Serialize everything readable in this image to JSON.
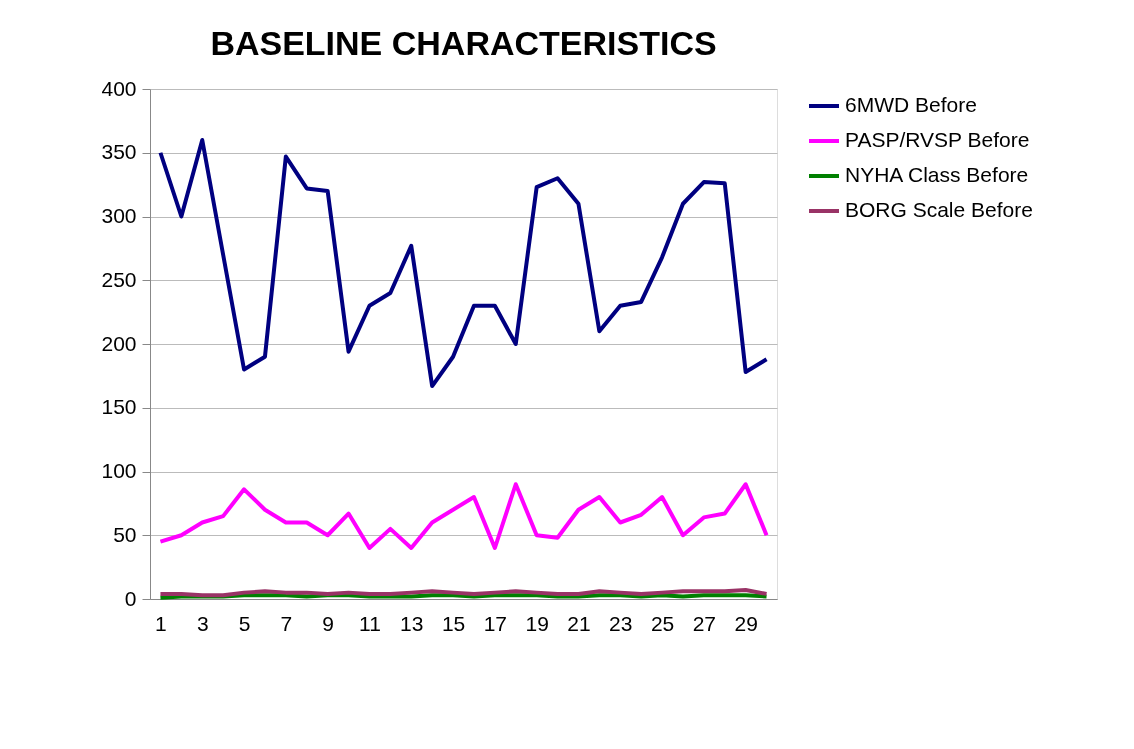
{
  "chart_data": {
    "type": "line",
    "title": "BASELINE CHARACTERISTICS",
    "x": [
      1,
      2,
      3,
      4,
      5,
      6,
      7,
      8,
      9,
      10,
      11,
      12,
      13,
      14,
      15,
      16,
      17,
      18,
      19,
      20,
      21,
      22,
      23,
      24,
      25,
      26,
      27,
      28,
      29,
      30
    ],
    "xlim": [
      0.5,
      30.5
    ],
    "xticks": [
      1,
      3,
      5,
      7,
      9,
      11,
      13,
      15,
      17,
      19,
      21,
      23,
      25,
      27,
      29
    ],
    "ylim": [
      0,
      400
    ],
    "yticks": [
      0,
      50,
      100,
      150,
      200,
      250,
      300,
      350,
      400
    ],
    "grid": "y",
    "legend": "right",
    "marker": "none",
    "line_style": "solid",
    "series": [
      {
        "name": "6MWD Before",
        "color": "#000080",
        "values": [
          350,
          300,
          360,
          270,
          180,
          190,
          347,
          322,
          320,
          194,
          230,
          240,
          277,
          167,
          190,
          230,
          230,
          200,
          323,
          330,
          310,
          210,
          230,
          233,
          268,
          310,
          327,
          326,
          178,
          188
        ]
      },
      {
        "name": "PASP/RVSP Before",
        "color": "#ff00ff",
        "values": [
          45,
          50,
          60,
          65,
          86,
          70,
          60,
          60,
          50,
          67,
          40,
          55,
          40,
          60,
          70,
          80,
          40,
          90,
          50,
          48,
          70,
          80,
          60,
          66,
          80,
          50,
          64,
          67,
          90,
          50
        ]
      },
      {
        "name": "NYHA Class Before",
        "color": "#008000",
        "values": [
          1,
          2,
          2,
          2,
          3,
          3,
          3,
          2,
          3,
          3,
          2,
          2,
          2,
          3,
          3,
          2,
          3,
          3,
          3,
          2,
          2,
          3,
          3,
          2,
          3,
          2,
          3,
          3,
          3,
          2
        ]
      },
      {
        "name": "BORG Scale Before",
        "color": "#993366",
        "values": [
          4,
          4,
          3,
          3,
          5,
          6,
          5,
          5,
          4,
          5,
          4,
          4,
          5,
          6,
          5,
          4,
          5,
          6,
          5,
          4,
          4,
          6,
          5,
          4,
          5,
          6,
          6,
          6,
          7,
          4
        ]
      }
    ]
  }
}
